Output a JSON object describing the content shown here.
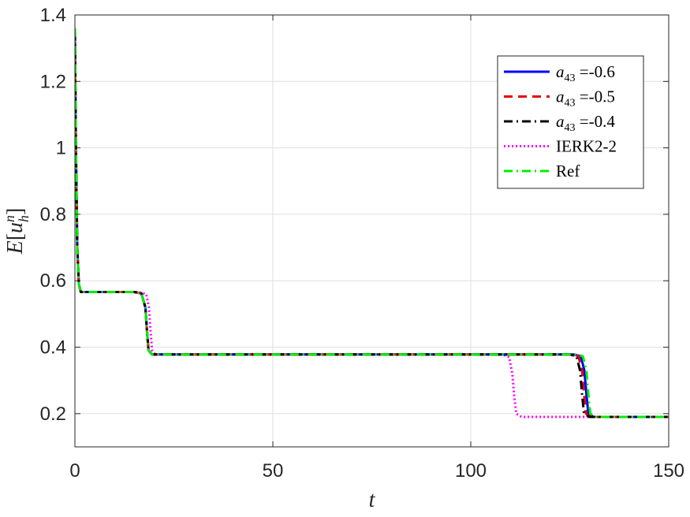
{
  "chart_data": {
    "type": "line",
    "xlabel": "t",
    "ylabel": "E[u_h^n]",
    "xlim": [
      0,
      150
    ],
    "ylim": [
      0.1,
      1.4
    ],
    "xticks": [
      0,
      50,
      100,
      150
    ],
    "xtick_labels": [
      "0",
      "50",
      "100",
      "150"
    ],
    "yticks": [
      0.2,
      0.4,
      0.6,
      0.8,
      1.0,
      1.2,
      1.4
    ],
    "ytick_labels": [
      "0.2",
      "0.4",
      "0.6",
      "0.8",
      "1",
      "1.2",
      "1.4"
    ],
    "grid": true,
    "legend_position": "upper-right",
    "series": [
      {
        "name": "a43 =-0.6",
        "label_var": "a",
        "label_sub": "43",
        "label_rest": " =-0.6",
        "color": "#0000ff",
        "style": "solid",
        "x": [
          0,
          0.25,
          0.6,
          1,
          1.5,
          15,
          16.8,
          17.8,
          18.2,
          18.6,
          19.5,
          126,
          127.8,
          128.7,
          129.2,
          129.7,
          131,
          150
        ],
        "y": [
          1.35,
          1.0,
          0.7,
          0.59,
          0.566,
          0.566,
          0.562,
          0.52,
          0.45,
          0.39,
          0.378,
          0.378,
          0.373,
          0.33,
          0.26,
          0.2,
          0.19,
          0.19
        ]
      },
      {
        "name": "a43 =-0.5",
        "label_var": "a",
        "label_sub": "43",
        "label_rest": " =-0.5",
        "color": "#e8000b",
        "style": "dashed",
        "x": [
          0,
          0.25,
          0.6,
          1,
          1.5,
          15,
          16.8,
          17.8,
          18.2,
          18.6,
          19.5,
          125.5,
          127.2,
          128.1,
          128.6,
          129.1,
          130.5,
          150
        ],
        "y": [
          1.35,
          1.0,
          0.7,
          0.59,
          0.566,
          0.566,
          0.562,
          0.52,
          0.45,
          0.39,
          0.378,
          0.378,
          0.373,
          0.33,
          0.26,
          0.2,
          0.19,
          0.19
        ]
      },
      {
        "name": "a43 =-0.4",
        "label_var": "a",
        "label_sub": "43",
        "label_rest": " =-0.4",
        "color": "#000000",
        "style": "dashdot",
        "x": [
          0,
          0.25,
          0.6,
          1,
          1.5,
          15,
          16.8,
          17.8,
          18.2,
          18.6,
          19.5,
          125,
          126.7,
          127.6,
          128.1,
          128.6,
          130,
          150
        ],
        "y": [
          1.35,
          1.0,
          0.7,
          0.59,
          0.566,
          0.566,
          0.562,
          0.52,
          0.45,
          0.39,
          0.378,
          0.378,
          0.373,
          0.33,
          0.26,
          0.2,
          0.19,
          0.19
        ]
      },
      {
        "name": "IERK2-2",
        "color": "#ff00ff",
        "style": "dotted",
        "x": [
          0,
          0.25,
          0.6,
          1,
          1.5,
          16,
          18.0,
          18.7,
          19.1,
          19.5,
          20.3,
          108,
          109.7,
          110.5,
          111.0,
          111.5,
          112.8,
          150
        ],
        "y": [
          1.35,
          1.0,
          0.7,
          0.59,
          0.566,
          0.566,
          0.56,
          0.52,
          0.45,
          0.39,
          0.378,
          0.378,
          0.37,
          0.32,
          0.25,
          0.2,
          0.19,
          0.19
        ]
      },
      {
        "name": "Ref",
        "color": "#00ee00",
        "style": "dashdot",
        "x": [
          0,
          0.25,
          0.6,
          1,
          1.5,
          15,
          16.8,
          17.8,
          18.2,
          18.6,
          19.5,
          126.5,
          128.3,
          129.2,
          129.7,
          130.2,
          131.5,
          150
        ],
        "y": [
          1.36,
          1.0,
          0.7,
          0.59,
          0.566,
          0.566,
          0.562,
          0.52,
          0.45,
          0.39,
          0.378,
          0.378,
          0.373,
          0.33,
          0.26,
          0.2,
          0.19,
          0.19
        ]
      }
    ]
  }
}
